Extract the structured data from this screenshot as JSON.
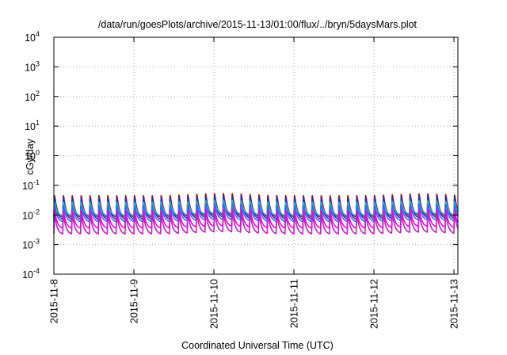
{
  "chart_data": {
    "type": "line",
    "title": "/data/run/goesPlots/archive/2015-11-13/01:00/flux/../bryn/5daysMars.plot",
    "xlabel": "Coordinated Universal Time (UTC)",
    "ylabel": "cGy/day",
    "yscale": "log",
    "ylim": [
      0.0001,
      10000
    ],
    "xlim": [
      "2015-11-08 00:00",
      "2015-11-13 01:00"
    ],
    "grid": true,
    "x_ticks": [
      "2015-11-8",
      "2015-11-9",
      "2015-11-10",
      "2015-11-11",
      "2015-11-12",
      "2015-11-13"
    ],
    "y_ticks": [
      {
        "base": "10",
        "exp": "-4"
      },
      {
        "base": "10",
        "exp": "-3"
      },
      {
        "base": "10",
        "exp": "-2"
      },
      {
        "base": "10",
        "exp": "-1"
      },
      {
        "base": "10",
        "exp": "0"
      },
      {
        "base": "10",
        "exp": "1"
      },
      {
        "base": "10",
        "exp": "2"
      },
      {
        "base": "10",
        "exp": "3"
      },
      {
        "base": "10",
        "exp": "4"
      }
    ],
    "pattern": {
      "description": "repeating sawtooth: sharp rise at start of each cycle, exponential decay until next cycle",
      "cycles_per_day": 9,
      "rise_fraction": 0.07
    },
    "series": [
      {
        "color": "#cc0000",
        "peak": 0.055,
        "trough": 0.0085
      },
      {
        "color": "#1a33cc",
        "peak": 0.047,
        "trough": 0.0072
      },
      {
        "color": "#22bbbb",
        "peak": 0.03,
        "trough": 0.0095
      },
      {
        "color": "#3366ff",
        "peak": 0.024,
        "trough": 0.006
      },
      {
        "color": "#ee00ee",
        "peak": 0.016,
        "trough": 0.0036
      },
      {
        "color": "#bb22bb",
        "peak": 0.0115,
        "trough": 0.0023
      }
    ]
  }
}
